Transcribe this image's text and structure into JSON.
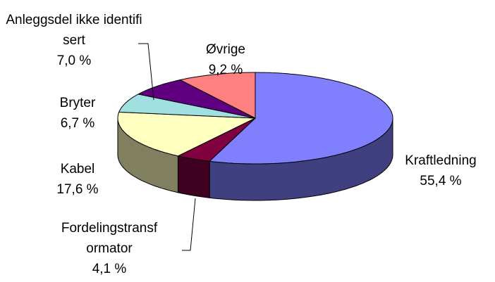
{
  "chart_data": {
    "type": "pie3d",
    "categories": [
      "Kraftledning",
      "Fordelingstransformator",
      "Kabel",
      "Bryter",
      "Anleggsdel ikke identifisert",
      "Øvrige"
    ],
    "values": [
      55.4,
      4.1,
      17.6,
      6.7,
      7.0,
      9.2
    ],
    "value_labels": [
      "55,4 %",
      "4,1 %",
      "17,6 %",
      "6,7 %",
      "7,0 %",
      "9,2 %"
    ],
    "colors": [
      "#8080ff",
      "#800040",
      "#ffffc0",
      "#a0e0e0",
      "#600080",
      "#ff8080"
    ]
  }
}
